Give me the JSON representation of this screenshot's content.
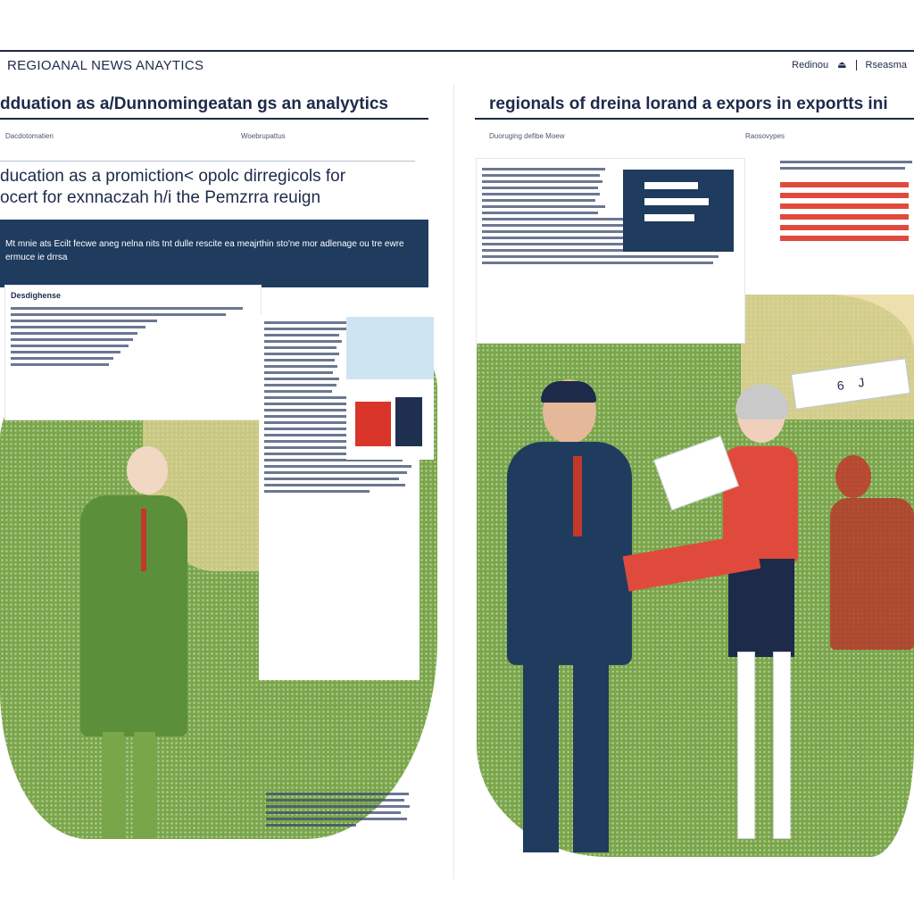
{
  "header": {
    "brand": "REGIOANAL NEWS ANAYTICS",
    "nav": [
      "Redinou",
      "Rseasma"
    ]
  },
  "left_page": {
    "headline": "dduation as a/Dunnomingeatan gs an analyytics",
    "meta_left": "Dacdotomatien",
    "meta_right": "Woebrupattus",
    "subhead_line1": "ducation as a promiction< opolc dirregicols for",
    "subhead_line2": "ocert for exnnaczah h/i the Pemzrra reuign",
    "bluebox_text": "Mt mnie ats Ecilt fecwe aneg nelna nits tnt dulle rescite ea meajrthin sto'ne mor adlenage ou tre ewre ermuce ie drrsa",
    "card_title": "Desdighense"
  },
  "right_page": {
    "headline": "regionals of dreina lorand a expors in exportts ini",
    "meta_left": "Duoruging defibe Moew",
    "meta_right": "Raosovypes",
    "tag_numbers": [
      "6",
      "J"
    ]
  },
  "colors": {
    "navy": "#1d2a4a",
    "dark_blue_box": "#1f3b5e",
    "map_green": "#7aa64a",
    "accent_red": "#e04a3c"
  }
}
